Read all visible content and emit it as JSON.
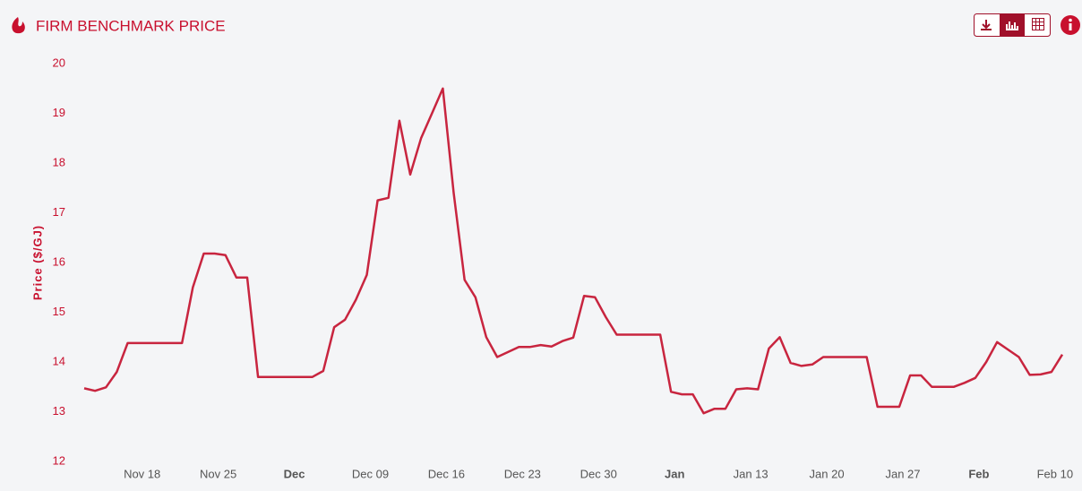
{
  "chart_data": {
    "type": "line",
    "title": "FIRM BENCHMARK PRICE",
    "y_label": "Price ($/GJ)",
    "categories": [
      null,
      null,
      null,
      null,
      null,
      "Nov 18",
      null,
      null,
      null,
      null,
      null,
      null,
      "Nov 25",
      null,
      null,
      null,
      null,
      null,
      null,
      "Dec",
      null,
      null,
      null,
      null,
      null,
      null,
      "Dec 09",
      null,
      null,
      null,
      null,
      null,
      null,
      "Dec 16",
      null,
      null,
      null,
      null,
      null,
      null,
      "Dec 23",
      null,
      null,
      null,
      null,
      null,
      null,
      "Dec 30",
      null,
      null,
      null,
      null,
      null,
      null,
      "Jan",
      null,
      null,
      null,
      null,
      null,
      null,
      "Jan 13",
      null,
      null,
      null,
      null,
      null,
      null,
      "Jan 20",
      null,
      null,
      null,
      null,
      null,
      null,
      "Jan 27",
      null,
      null,
      null,
      null,
      null,
      null,
      "Feb",
      null,
      null,
      null,
      null,
      null,
      null,
      "Feb 10",
      null
    ],
    "series": [
      {
        "color": "#c8253f",
        "values": [
          13.47,
          13.42,
          13.49,
          13.8,
          14.38,
          14.38,
          14.38,
          14.38,
          14.38,
          14.38,
          15.5,
          16.18,
          16.18,
          16.15,
          15.7,
          15.7,
          13.7,
          13.7,
          13.7,
          13.7,
          13.7,
          13.7,
          13.82,
          14.7,
          14.85,
          15.25,
          15.75,
          17.25,
          17.3,
          18.85,
          17.77,
          18.5,
          19.0,
          19.5,
          17.4,
          15.65,
          15.3,
          14.5,
          14.1,
          14.2,
          14.3,
          14.3,
          14.34,
          14.31,
          14.42,
          14.49,
          15.33,
          15.3,
          14.9,
          14.55,
          14.55,
          14.55,
          14.55,
          14.55,
          13.4,
          13.35,
          13.35,
          12.97,
          13.06,
          13.06,
          13.45,
          13.47,
          13.45,
          14.27,
          14.5,
          13.98,
          13.92,
          13.95,
          14.1,
          14.1,
          14.1,
          14.1,
          14.1,
          13.1,
          13.1,
          13.1,
          13.73,
          13.73,
          13.5,
          13.5,
          13.5,
          13.58,
          13.68,
          14.0,
          14.4,
          14.25,
          14.1,
          13.74,
          13.75,
          13.8,
          14.15
        ]
      }
    ],
    "ylim": [
      12,
      20
    ],
    "yticks": [
      12,
      13,
      14,
      15,
      16,
      17,
      18,
      19,
      20
    ],
    "grid": false
  }
}
